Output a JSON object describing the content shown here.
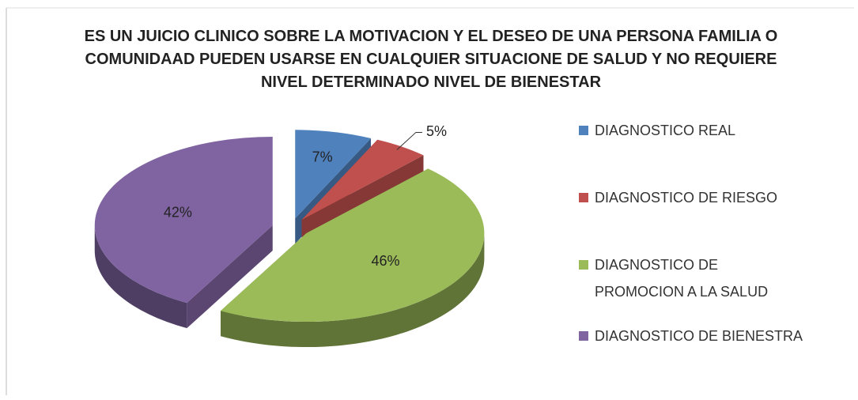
{
  "chart_data": {
    "type": "pie",
    "title": "ES UN JUICIO CLINICO SOBRE LA MOTIVACION Y EL DESEO DE UNA PERSONA FAMILIA O COMUNIDAAD PUEDEN USARSE EN CUALQUIER SITUACIONE DE SALUD Y NO REQUIERE NIVEL DETERMINADO NIVEL DE BIENESTAR",
    "categories": [
      "DIAGNOSTICO REAL",
      "DIAGNOSTICO DE RIESGO",
      "DIAGNOSTICO DE PROMOCION A LA SALUD",
      "DIAGNOSTICO DE BIENESTRA"
    ],
    "values": [
      7,
      5,
      46,
      42
    ],
    "value_labels": [
      "7%",
      "5%",
      "46%",
      "42%"
    ],
    "colors": [
      "#4f81bd",
      "#c0504d",
      "#9bbb59",
      "#8064a2"
    ],
    "legend": "right"
  }
}
